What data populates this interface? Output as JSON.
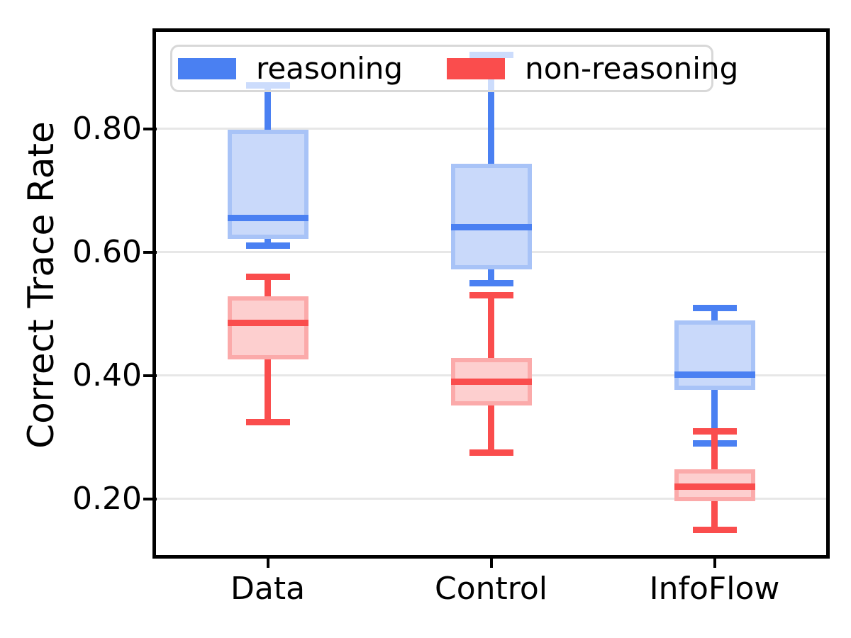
{
  "chart_data": {
    "type": "boxplot",
    "title": "",
    "ylabel": "Correct Trace Rate",
    "xlabel": "",
    "categories": [
      "Data",
      "Control",
      "InfoFlow"
    ],
    "ytick_labels": [
      "0.20",
      "0.40",
      "0.60",
      "0.80"
    ],
    "yticks": [
      0.2,
      0.4,
      0.6,
      0.8
    ],
    "ylim": [
      0.109,
      0.957
    ],
    "grid": "horizontal",
    "legend_position": "upper left",
    "colors": {
      "grid": "#e7e7e7",
      "axis": "#000000",
      "legend_border": "#d8d8d8"
    },
    "series": [
      {
        "name": "reasoning",
        "color": "#4a80f2",
        "face_color": "#c9d9fa",
        "edge_color": "#a8c3f7",
        "stats": [
          {
            "category": "Data",
            "whislo": 0.61,
            "q1": 0.625,
            "med": 0.655,
            "q3": 0.795,
            "whishi": 0.87
          },
          {
            "category": "Control",
            "whislo": 0.55,
            "q1": 0.575,
            "med": 0.64,
            "q3": 0.74,
            "whishi": 0.92
          },
          {
            "category": "InfoFlow",
            "whislo": 0.29,
            "q1": 0.38,
            "med": 0.402,
            "q3": 0.486,
            "whishi": 0.51
          }
        ]
      },
      {
        "name": "non-reasoning",
        "color": "#fa4d4d",
        "face_color": "#fdcfcf",
        "edge_color": "#fbaaaa",
        "stats": [
          {
            "category": "Data",
            "whislo": 0.325,
            "q1": 0.43,
            "med": 0.485,
            "q3": 0.525,
            "whishi": 0.56
          },
          {
            "category": "Control",
            "whislo": 0.275,
            "q1": 0.355,
            "med": 0.39,
            "q3": 0.425,
            "whishi": 0.53
          },
          {
            "category": "InfoFlow",
            "whislo": 0.15,
            "q1": 0.2,
            "med": 0.22,
            "q3": 0.245,
            "whishi": 0.31
          }
        ]
      }
    ]
  }
}
